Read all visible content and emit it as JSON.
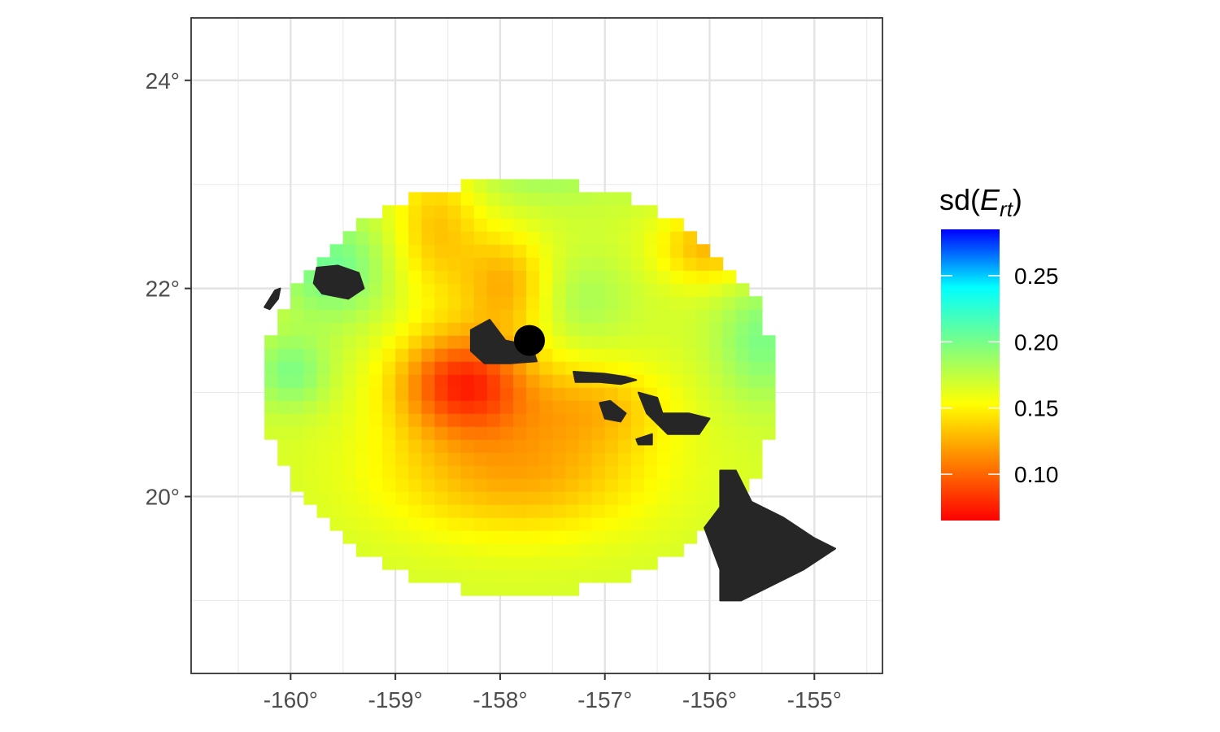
{
  "chart_data": {
    "type": "heatmap",
    "title": "",
    "xlabel": "",
    "ylabel": "",
    "xlim": [
      -160.95,
      -154.35
    ],
    "ylim": [
      18.3,
      24.6
    ],
    "x_major_ticks": [
      -160,
      -159,
      -158,
      -157,
      -156,
      -155
    ],
    "x_tick_labels": [
      "-160°",
      "-159°",
      "-158°",
      "-157°",
      "-156°",
      "-155°"
    ],
    "y_major_ticks": [
      20,
      22,
      24
    ],
    "y_tick_labels": [
      "20°",
      "22°",
      "24°"
    ],
    "x_minor_ticks": [
      -160.5,
      -159.5,
      -158.5,
      -157.5,
      -156.5,
      -155.5,
      -154.5
    ],
    "y_minor_ticks": [
      19,
      21,
      23
    ],
    "grid": true,
    "legend": {
      "position": "right",
      "title_prefix": "sd(",
      "title_var": "E",
      "title_sub": "rt",
      "title_suffix": ")",
      "range": [
        0.065,
        0.285
      ],
      "tick_values": [
        0.1,
        0.15,
        0.2,
        0.25
      ],
      "tick_labels": [
        "0.10",
        "0.15",
        "0.20",
        "0.25"
      ]
    },
    "colorscale": [
      "#ff0000",
      "#ff8000",
      "#ffff00",
      "#80ff80",
      "#00ffff",
      "#0000ff"
    ],
    "field": {
      "center": [
        -157.8,
        21.05
      ],
      "radius_x": 2.45,
      "radius_y": 2.0,
      "cell_size": 0.125,
      "value_range": [
        0.065,
        0.285
      ]
    },
    "station": {
      "lon": -157.72,
      "lat": 21.5
    },
    "land_color": "#262626",
    "islands": [
      {
        "name": "Niihau",
        "points": [
          [
            -160.25,
            21.82
          ],
          [
            -160.2,
            21.9
          ],
          [
            -160.15,
            21.98
          ],
          [
            -160.1,
            22.0
          ],
          [
            -160.12,
            21.9
          ],
          [
            -160.2,
            21.8
          ]
        ]
      },
      {
        "name": "Kauai",
        "points": [
          [
            -159.75,
            22.2
          ],
          [
            -159.55,
            22.22
          ],
          [
            -159.35,
            22.15
          ],
          [
            -159.3,
            22.0
          ],
          [
            -159.45,
            21.9
          ],
          [
            -159.7,
            21.95
          ],
          [
            -159.78,
            22.05
          ]
        ]
      },
      {
        "name": "Oahu",
        "points": [
          [
            -158.28,
            21.6
          ],
          [
            -158.1,
            21.7
          ],
          [
            -157.95,
            21.5
          ],
          [
            -157.7,
            21.45
          ],
          [
            -157.65,
            21.3
          ],
          [
            -157.9,
            21.28
          ],
          [
            -158.15,
            21.28
          ],
          [
            -158.28,
            21.4
          ]
        ]
      },
      {
        "name": "Molokai",
        "points": [
          [
            -157.3,
            21.2
          ],
          [
            -157.0,
            21.18
          ],
          [
            -156.8,
            21.15
          ],
          [
            -156.7,
            21.12
          ],
          [
            -156.85,
            21.08
          ],
          [
            -157.05,
            21.1
          ],
          [
            -157.28,
            21.1
          ]
        ]
      },
      {
        "name": "Lanai",
        "points": [
          [
            -157.05,
            20.9
          ],
          [
            -156.95,
            20.92
          ],
          [
            -156.8,
            20.8
          ],
          [
            -156.85,
            20.72
          ],
          [
            -157.0,
            20.75
          ]
        ]
      },
      {
        "name": "Maui",
        "points": [
          [
            -156.68,
            21.0
          ],
          [
            -156.5,
            20.95
          ],
          [
            -156.45,
            20.8
          ],
          [
            -156.2,
            20.8
          ],
          [
            -156.0,
            20.75
          ],
          [
            -156.1,
            20.6
          ],
          [
            -156.4,
            20.6
          ],
          [
            -156.6,
            20.8
          ]
        ]
      },
      {
        "name": "Kahoolawe",
        "points": [
          [
            -156.7,
            20.55
          ],
          [
            -156.55,
            20.6
          ],
          [
            -156.55,
            20.5
          ],
          [
            -156.68,
            20.5
          ]
        ]
      },
      {
        "name": "Hawaii",
        "points": [
          [
            -155.9,
            20.25
          ],
          [
            -155.75,
            20.25
          ],
          [
            -155.6,
            19.95
          ],
          [
            -155.3,
            19.8
          ],
          [
            -155.0,
            19.6
          ],
          [
            -154.8,
            19.5
          ],
          [
            -155.1,
            19.3
          ],
          [
            -155.5,
            19.1
          ],
          [
            -155.7,
            19.0
          ],
          [
            -155.9,
            19.0
          ],
          [
            -155.9,
            19.3
          ],
          [
            -156.05,
            19.7
          ],
          [
            -155.9,
            19.9
          ]
        ]
      }
    ]
  }
}
